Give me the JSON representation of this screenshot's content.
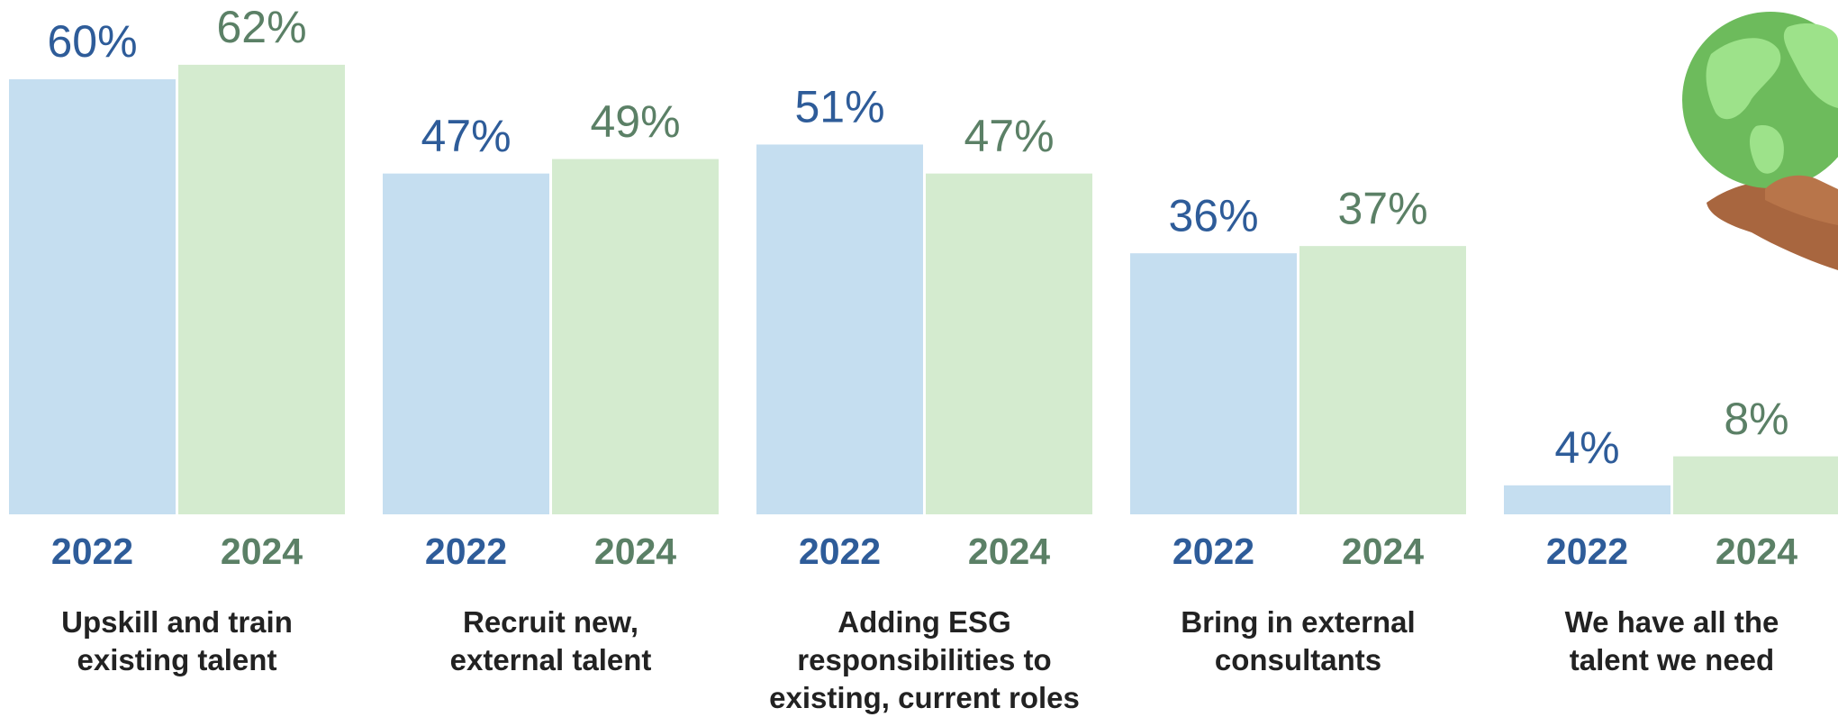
{
  "chart_data": {
    "type": "bar",
    "categories": [
      "Upskill and train\nexisting talent",
      "Recruit new,\nexternal talent",
      "Adding ESG\nresponsibilities to\nexisting, current roles",
      "Bring in external\nconsultants",
      "We have all the\ntalent we need"
    ],
    "series": [
      {
        "name": "2022",
        "color": "#c5def0",
        "label_color": "#2e5c99",
        "values": [
          60,
          47,
          51,
          36,
          4
        ],
        "value_labels": [
          "60%",
          "47%",
          "51%",
          "36%",
          "4%"
        ]
      },
      {
        "name": "2024",
        "color": "#d4ebcf",
        "label_color": "#5b8066",
        "values": [
          62,
          49,
          47,
          37,
          8
        ],
        "value_labels": [
          "62%",
          "49%",
          "47%",
          "37%",
          "8%"
        ]
      }
    ]
  }
}
